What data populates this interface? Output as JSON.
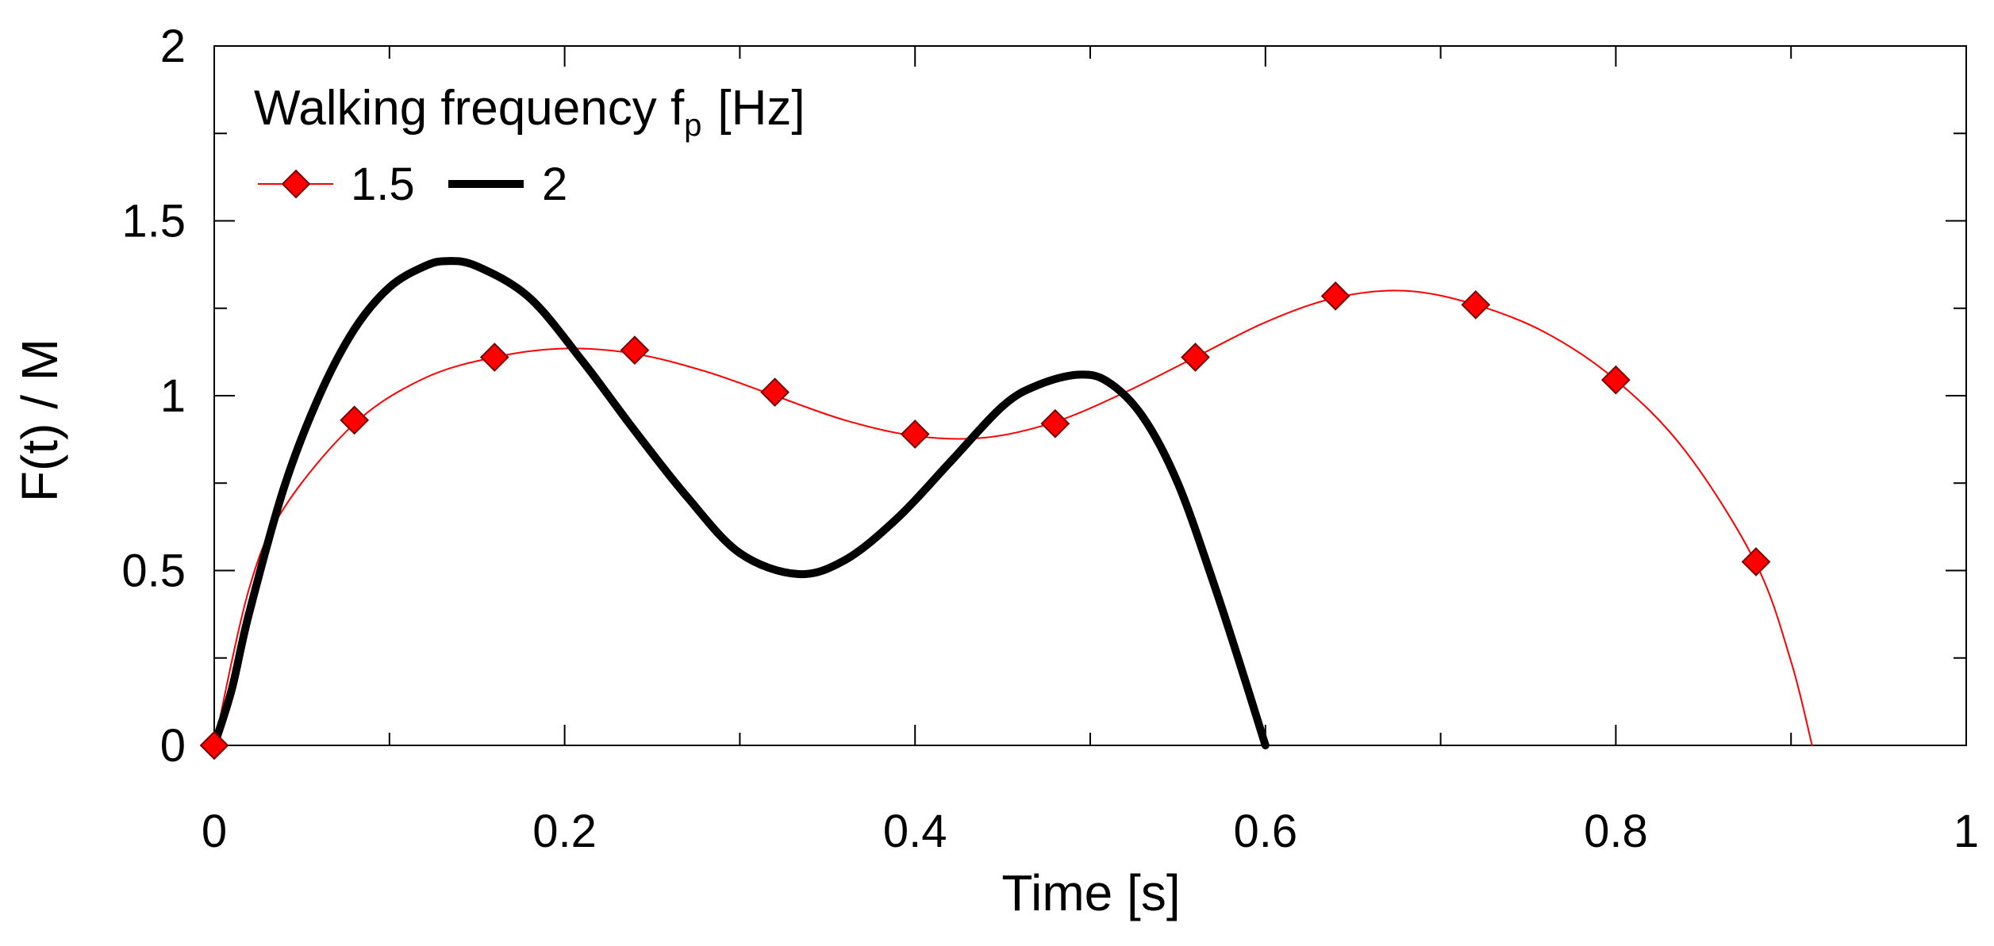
{
  "chart_data": {
    "type": "line",
    "title": "",
    "xlabel": "Time [s]",
    "ylabel": "F(t) / M",
    "xlim": [
      0,
      1
    ],
    "ylim": [
      0,
      2
    ],
    "x_ticks": [
      0,
      0.2,
      0.4,
      0.6,
      0.8,
      1
    ],
    "x_tick_labels": [
      "0",
      "0.2",
      "0.4",
      "0.6",
      "0.8",
      "1"
    ],
    "y_ticks": [
      0,
      0.5,
      1,
      1.5,
      2
    ],
    "y_tick_labels": [
      "0",
      "0.5",
      "1",
      "1.5",
      "2"
    ],
    "grid": false,
    "legend": {
      "title": "Walking frequency f",
      "title_subscript": "p",
      "title_suffix": "[Hz]",
      "placement": "top-left"
    },
    "series": [
      {
        "name": "1.5",
        "color": "#ff0000",
        "marker": "diamond",
        "marker_fill": "#ff0000",
        "marker_edge": "#7a0000",
        "line": "thin",
        "curve": {
          "x": [
            0,
            0.02,
            0.04,
            0.08,
            0.12,
            0.16,
            0.2,
            0.24,
            0.28,
            0.32,
            0.36,
            0.4,
            0.44,
            0.48,
            0.52,
            0.56,
            0.6,
            0.64,
            0.68,
            0.72,
            0.76,
            0.8,
            0.84,
            0.88,
            0.9,
            0.912
          ],
          "y": [
            0,
            0.45,
            0.68,
            0.92,
            1.05,
            1.11,
            1.135,
            1.12,
            1.07,
            1.0,
            0.93,
            0.885,
            0.88,
            0.925,
            1.01,
            1.11,
            1.21,
            1.28,
            1.3,
            1.26,
            1.18,
            1.045,
            0.84,
            0.52,
            0.24,
            0.0
          ]
        },
        "markers": {
          "x": [
            0,
            0.08,
            0.16,
            0.24,
            0.32,
            0.4,
            0.48,
            0.56,
            0.64,
            0.72,
            0.8,
            0.88
          ],
          "y": [
            0,
            0.93,
            1.11,
            1.13,
            1.01,
            0.89,
            0.92,
            1.11,
            1.285,
            1.26,
            1.045,
            0.525
          ]
        }
      },
      {
        "name": "2",
        "color": "#000000",
        "marker": "none",
        "line": "thick",
        "curve": {
          "x": [
            0,
            0.01,
            0.02,
            0.04,
            0.06,
            0.08,
            0.1,
            0.12,
            0.133,
            0.15,
            0.18,
            0.21,
            0.24,
            0.27,
            0.3,
            0.333,
            0.36,
            0.39,
            0.42,
            0.45,
            0.47,
            0.493,
            0.51,
            0.53,
            0.55,
            0.57,
            0.585,
            0.6
          ],
          "y": [
            0,
            0.16,
            0.38,
            0.74,
            1.0,
            1.19,
            1.31,
            1.37,
            1.385,
            1.37,
            1.28,
            1.1,
            0.9,
            0.71,
            0.55,
            0.49,
            0.53,
            0.65,
            0.81,
            0.97,
            1.03,
            1.06,
            1.04,
            0.94,
            0.75,
            0.47,
            0.24,
            0.0
          ]
        }
      }
    ]
  }
}
